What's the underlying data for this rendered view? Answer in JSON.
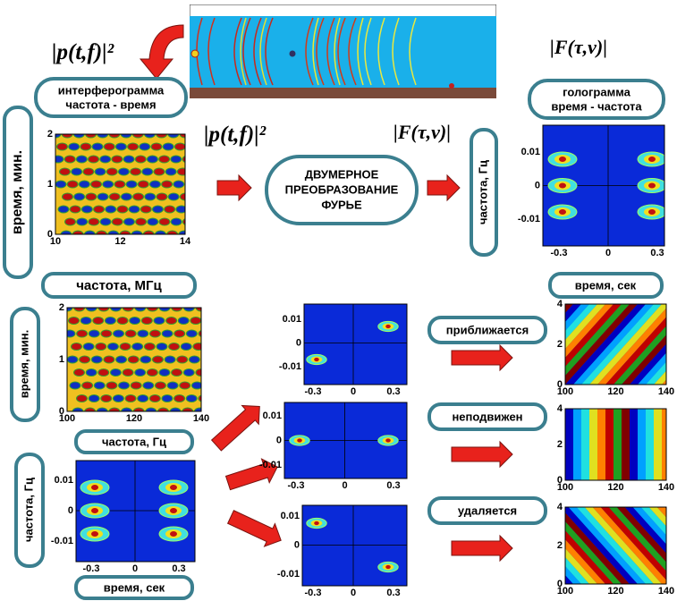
{
  "top_formulas": {
    "left": "|p(t,f)|²",
    "right": "|F(τ,ν)|"
  },
  "interferogram_label": [
    "интерферограмма",
    "частота - время"
  ],
  "hologram_label": [
    "голограмма",
    "время - частота"
  ],
  "middle_formulas": {
    "left": "|p(t,f)|²",
    "right": "|F(τ,ν)|"
  },
  "transform_label": [
    "ДВУМЕРНОЕ",
    "ПРЕОБРАЗОВАНИЕ",
    "ФУРЬЕ"
  ],
  "axis_labels": [
    "время, мин.",
    "частота, Гц",
    "частота, МГц",
    "время, сек",
    "время, мин.",
    "частота, Гц",
    "частота, Гц",
    "время, сек"
  ],
  "states": [
    "приближается",
    "неподвижен",
    "удаляется"
  ],
  "plots": [
    {
      "xticks": [
        "10",
        "12",
        "14"
      ],
      "yticks": [
        "2",
        "1",
        "0"
      ]
    },
    {
      "xticks": [
        "-0.3",
        "0",
        "0.3"
      ],
      "yticks": [
        "0.01",
        "0",
        "-0.01"
      ]
    },
    {
      "xticks": [
        "100",
        "120",
        "140"
      ],
      "yticks": [
        "2",
        "1",
        "0"
      ]
    },
    {
      "xticks": [
        "-0.3",
        "0",
        "0.3"
      ],
      "yticks": [
        "0.01",
        "0",
        "-0.01"
      ]
    },
    {
      "xticks": [
        "-0.3",
        "0",
        "0.3"
      ],
      "yticks": [
        "0.01",
        "0",
        "-0.01"
      ]
    },
    {
      "xticks": [
        "-0.3",
        "0",
        "0.3"
      ],
      "yticks": [
        "0.01",
        "0",
        "-0.01"
      ]
    },
    {
      "xticks": [
        "-0.3",
        "0",
        "0.3"
      ],
      "yticks": [
        "0.01",
        "0",
        "-0.01"
      ]
    },
    {
      "xticks": [
        "100",
        "120",
        "140"
      ],
      "yticks": [
        "4",
        "2",
        "0"
      ]
    },
    {
      "xticks": [
        "100",
        "120",
        "140"
      ],
      "yticks": [
        "4",
        "2",
        "0"
      ]
    },
    {
      "xticks": [
        "100",
        "120",
        "140"
      ],
      "yticks": [
        "4",
        "2",
        "0"
      ]
    }
  ]
}
